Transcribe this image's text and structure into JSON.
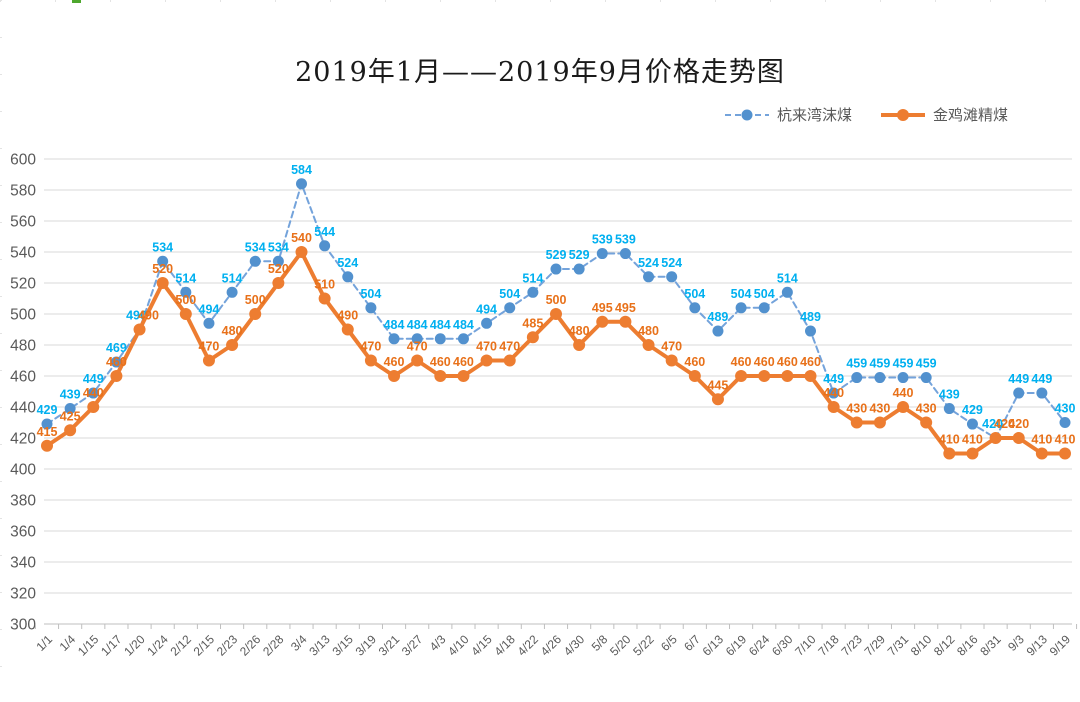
{
  "chart_data": {
    "type": "line",
    "title": "2019年1月——2019年9月价格走势图",
    "categories": [
      "1/1",
      "1/4",
      "1/15",
      "1/17",
      "1/20",
      "1/24",
      "2/12",
      "2/15",
      "2/23",
      "2/26",
      "2/28",
      "3/4",
      "3/13",
      "3/15",
      "3/19",
      "3/21",
      "3/27",
      "4/3",
      "4/10",
      "4/15",
      "4/18",
      "4/22",
      "4/26",
      "4/30",
      "5/8",
      "5/20",
      "5/22",
      "6/5",
      "6/7",
      "6/13",
      "6/19",
      "6/24",
      "6/30",
      "7/10",
      "7/18",
      "7/23",
      "7/29",
      "7/31",
      "8/10",
      "8/12",
      "8/16",
      "8/31",
      "9/3",
      "9/13",
      "9/19"
    ],
    "series": [
      {
        "name": "杭来湾沫煤",
        "style": "dashed",
        "line_color": "#74A3DB",
        "marker_color": "#5291CE",
        "label_color": "#00B0F0",
        "values": [
          429,
          439,
          449,
          469,
          490,
          534,
          514,
          494,
          514,
          534,
          534,
          584,
          544,
          524,
          504,
          484,
          484,
          484,
          484,
          494,
          504,
          514,
          529,
          529,
          539,
          539,
          524,
          524,
          504,
          489,
          504,
          504,
          514,
          489,
          449,
          459,
          459,
          459,
          459,
          439,
          429,
          420,
          449,
          449,
          430
        ]
      },
      {
        "name": "金鸡滩精煤",
        "style": "solid",
        "line_color": "#ED7D31",
        "marker_color": "#ED7D31",
        "label_color": "#E8711A",
        "values": [
          415,
          425,
          440,
          460,
          490,
          520,
          500,
          470,
          480,
          500,
          520,
          540,
          510,
          490,
          470,
          460,
          470,
          460,
          460,
          470,
          470,
          485,
          500,
          480,
          495,
          495,
          480,
          470,
          460,
          445,
          460,
          460,
          460,
          460,
          440,
          430,
          430,
          440,
          430,
          410,
          410,
          420,
          420,
          410,
          410
        ]
      }
    ],
    "ylim": [
      300,
      600
    ],
    "y_step": 20,
    "grid": "horizontal-only",
    "legend_position": "top-right",
    "data_labels": true,
    "axis_text_color": "#595959",
    "gridline_color": "#D9D9D9",
    "axis_line_color": "#BFBFBF"
  }
}
